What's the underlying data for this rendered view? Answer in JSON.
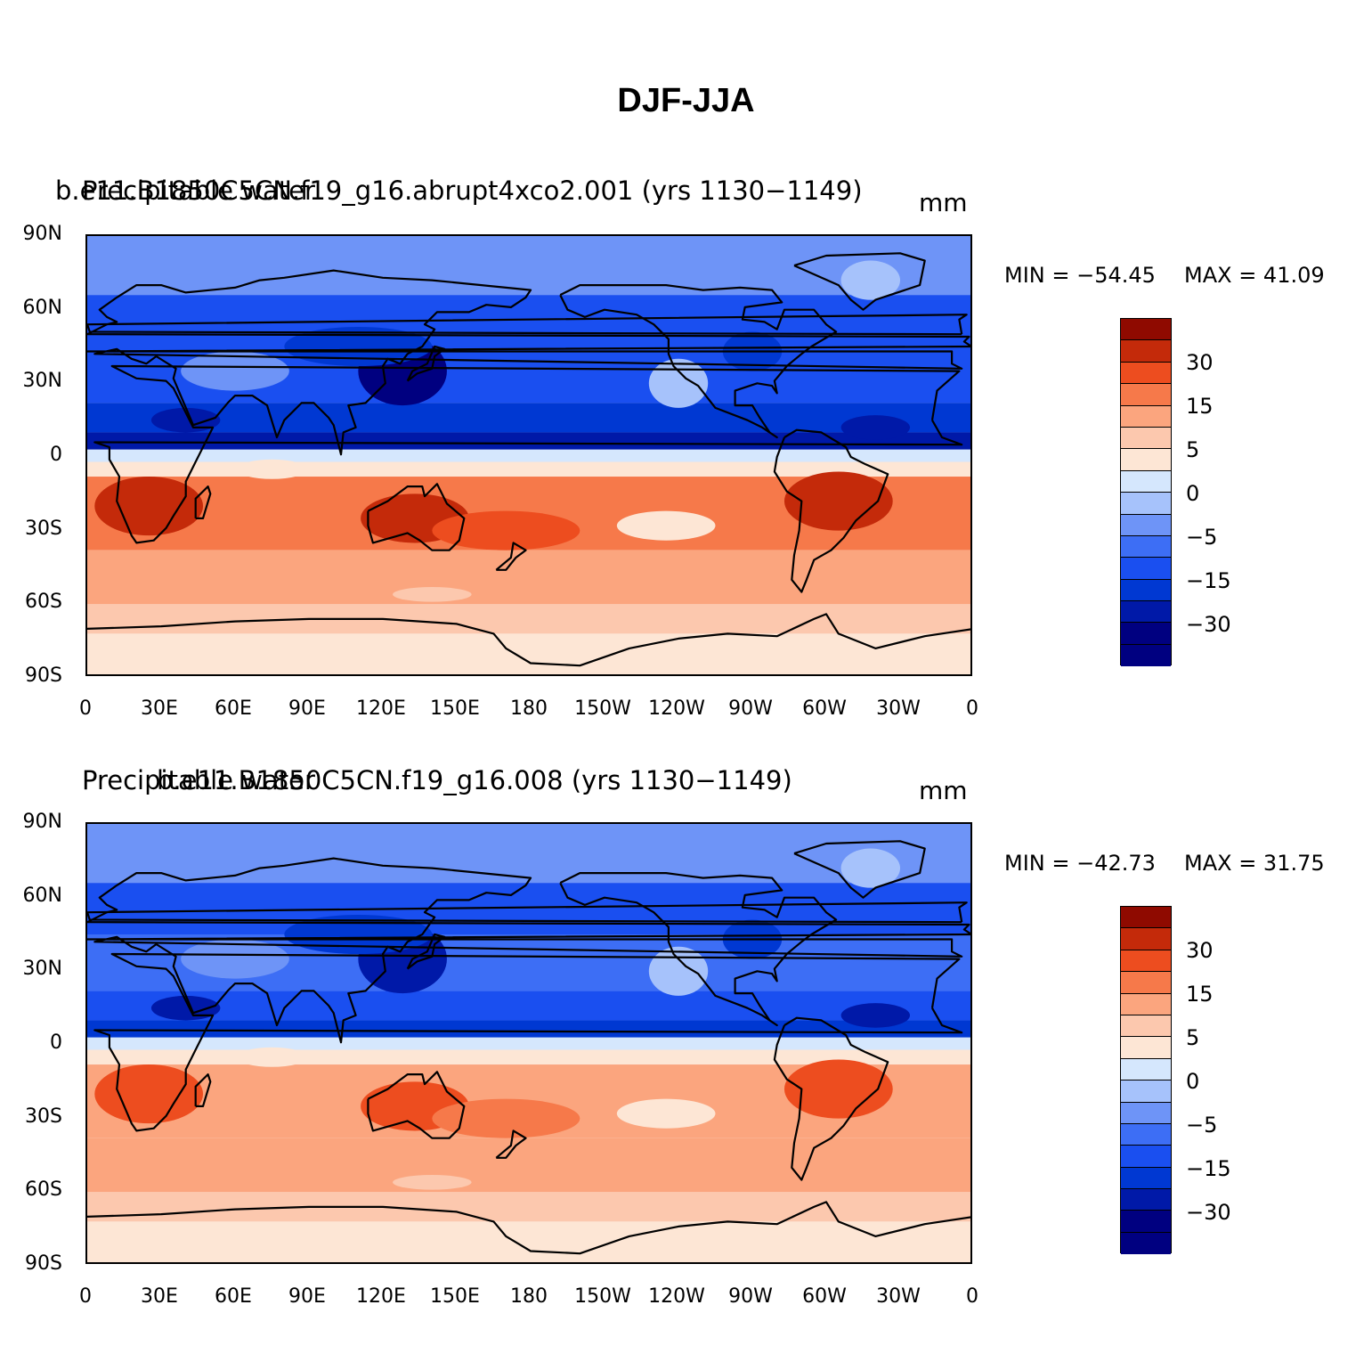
{
  "title": "DJF-JJA",
  "colors": {
    "levels": [
      "#000080",
      "#0019A8",
      "#0038D2",
      "#1a4ff0",
      "#3d6ef5",
      "#6e94f7",
      "#a6c2fb",
      "#d5e7fd",
      "#fde6d5",
      "#fcc8ae",
      "#fba57e",
      "#f6794a",
      "#ed4d1f",
      "#c42a0a",
      "#8f0a00"
    ],
    "coastline": "#000000"
  },
  "colorbar": {
    "labels": [
      "30",
      "15",
      "5",
      "0",
      "−5",
      "−15",
      "−30"
    ]
  },
  "axes": {
    "lat_labels": [
      "90N",
      "60N",
      "30N",
      "0",
      "30S",
      "60S",
      "90S"
    ],
    "lon_labels": [
      "0",
      "30E",
      "60E",
      "90E",
      "120E",
      "150E",
      "180",
      "150W",
      "120W",
      "90W",
      "60W",
      "30W",
      "0"
    ]
  },
  "panels": [
    {
      "left_label": "Precipitable water",
      "center_label": "b.e11.B1850C5CN.f19_g16.abrupt4xco2.001 (yrs 1130−1149)",
      "units": "mm",
      "min_label": "MIN = −54.45",
      "max_label": "MAX =   41.09"
    },
    {
      "left_label": "Precipitable water",
      "center_label": "b.e11.B1850C5CN.f19_g16.008 (yrs 1130−1149)",
      "units": "mm",
      "min_label": "MIN = −42.73",
      "max_label": "MAX =   31.75"
    }
  ],
  "chart_data": {
    "type": "heatmap",
    "title": "DJF-JJA",
    "xlabel": "",
    "ylabel": "",
    "x_ticks": [
      "0",
      "30E",
      "60E",
      "90E",
      "120E",
      "150E",
      "180",
      "150W",
      "120W",
      "90W",
      "60W",
      "30W",
      "0"
    ],
    "y_ticks": [
      "90N",
      "60N",
      "30N",
      "0",
      "30S",
      "60S",
      "90S"
    ],
    "xlim": [
      0,
      360
    ],
    "ylim": [
      -90,
      90
    ],
    "colorbar_levels": [
      -30,
      -15,
      -5,
      0,
      5,
      15,
      30
    ],
    "panels": [
      {
        "name": "b.e11.B1850C5CN.f19_g16.abrupt4xco2.001 (yrs 1130−1149)",
        "variable": "Precipitable water",
        "units": "mm",
        "min": -54.45,
        "max": 41.09
      },
      {
        "name": "b.e11.B1850C5CN.f19_g16.008 (yrs 1130−1149)",
        "variable": "Precipitable water",
        "units": "mm",
        "min": -42.73,
        "max": 31.75
      }
    ]
  }
}
